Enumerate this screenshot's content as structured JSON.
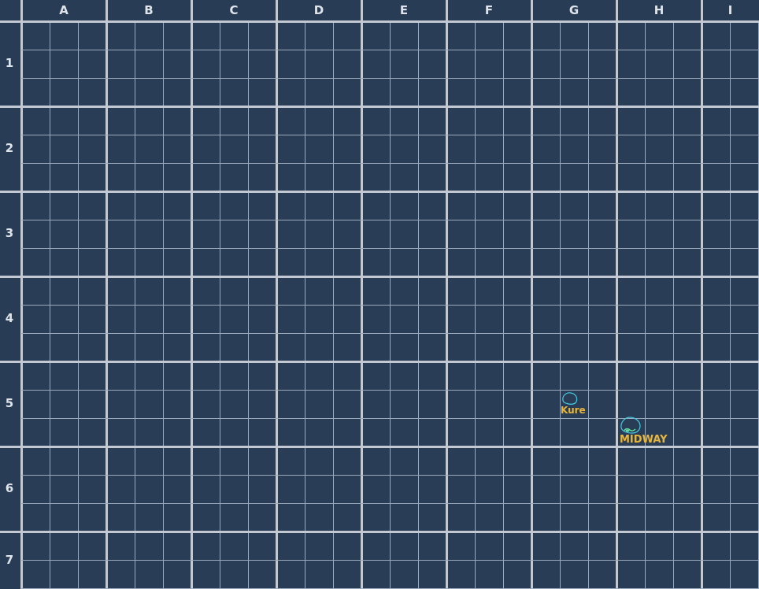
{
  "board": {
    "columns": [
      "A",
      "B",
      "C",
      "D",
      "E",
      "F",
      "G",
      "H",
      "I"
    ],
    "rows": [
      "1",
      "2",
      "3",
      "4",
      "5",
      "6",
      "7"
    ],
    "colors": {
      "water": "#2a3d57",
      "grid_minor": "#9aa9bb",
      "grid_major": "#c2c9d2",
      "header_text": "#dfe4ea",
      "island_outline": "#46c8e0",
      "island_label": "#e8b63a"
    }
  },
  "islands": [
    {
      "name": "Kure",
      "cell": "G5",
      "icon": "island-outline-icon"
    },
    {
      "name": "MIDWAY",
      "cell": "H5",
      "icon": "atoll-outline-icon"
    }
  ]
}
